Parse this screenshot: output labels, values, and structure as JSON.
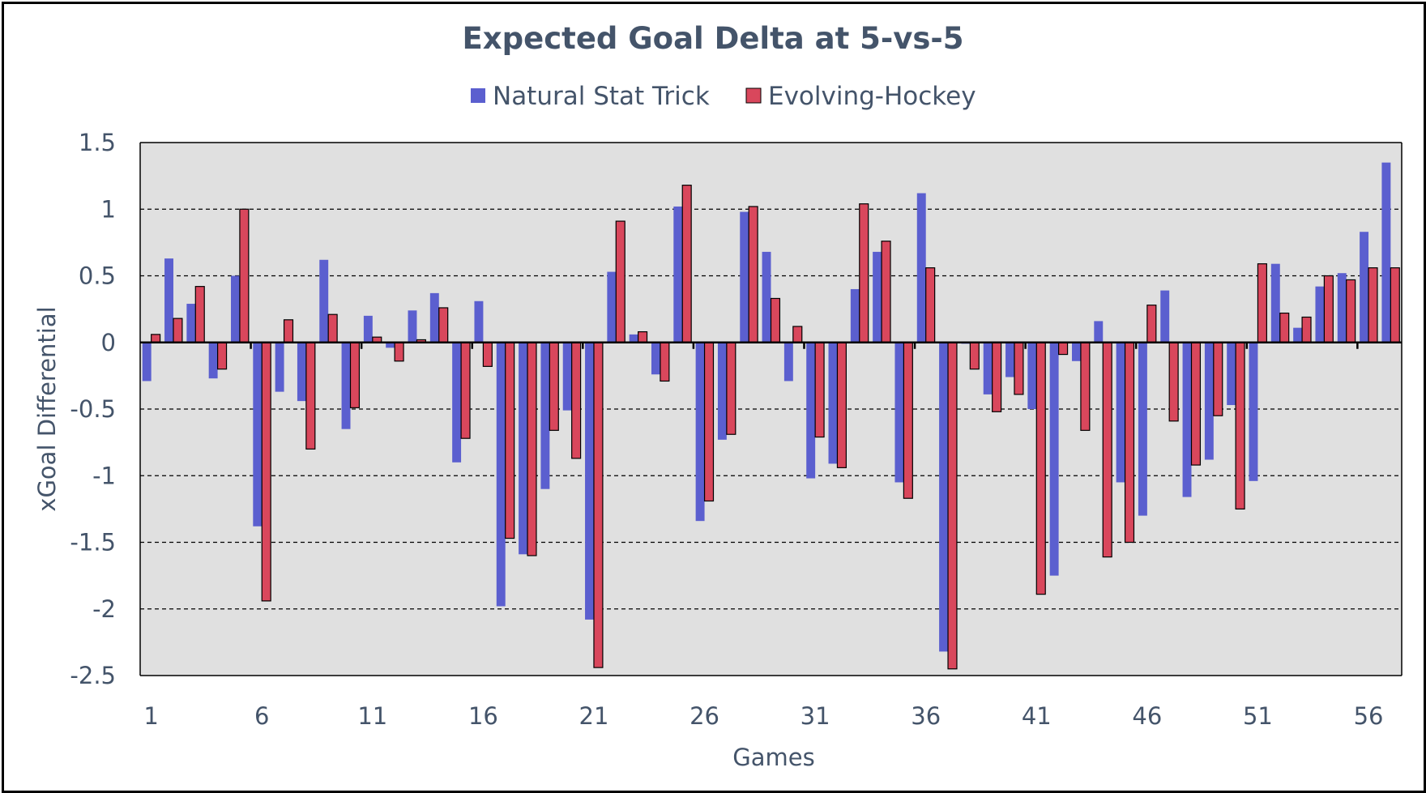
{
  "chart_data": {
    "type": "bar",
    "title": "Expected Goal Delta at 5-vs-5",
    "xlabel": "Games",
    "ylabel": "xGoal Differential",
    "ylim": [
      -2.5,
      1.5
    ],
    "yticks": [
      "1.5",
      "1",
      "0.5",
      "0",
      "-0.5",
      "-1",
      "-1.5",
      "-2",
      "-2.5"
    ],
    "ytick_values": [
      1.5,
      1,
      0.5,
      0,
      -0.5,
      -1,
      -1.5,
      -2,
      -2.5
    ],
    "xtick_labels": [
      "1",
      "6",
      "11",
      "16",
      "21",
      "26",
      "31",
      "36",
      "41",
      "46",
      "51",
      "56"
    ],
    "xtick_games": [
      1,
      6,
      11,
      16,
      21,
      26,
      31,
      36,
      41,
      46,
      51,
      56
    ],
    "n_games": 57,
    "grid": "horizontal dashed",
    "legend": "top",
    "plot_background": "#e0e0e0",
    "series": [
      {
        "name": "Natural Stat Trick",
        "color": "#5b5fcf",
        "values": [
          -0.29,
          0.63,
          0.29,
          -0.27,
          0.5,
          -1.38,
          -0.37,
          -0.44,
          0.62,
          -0.65,
          0.2,
          -0.04,
          0.24,
          0.37,
          -0.9,
          0.31,
          -1.98,
          -1.59,
          -1.1,
          -0.51,
          -2.08,
          0.53,
          0.06,
          -0.24,
          1.02,
          -1.34,
          -0.73,
          0.98,
          0.68,
          -0.29,
          -1.02,
          -0.91,
          0.4,
          0.68,
          -1.05,
          1.12,
          -2.32,
          -0.01,
          -0.39,
          -0.26,
          -0.5,
          -1.75,
          -0.14,
          0.16,
          -1.05,
          -1.3,
          0.39,
          -1.16,
          -0.88,
          -0.47,
          -1.04,
          0.59,
          0.11,
          0.42,
          0.52,
          0.83,
          1.35
        ]
      },
      {
        "name": "Evolving-Hockey",
        "color": "#d9475c",
        "values": [
          0.06,
          0.18,
          0.42,
          -0.2,
          1.0,
          -1.94,
          0.17,
          -0.8,
          0.21,
          -0.49,
          0.04,
          -0.14,
          0.02,
          0.26,
          -0.72,
          -0.18,
          -1.47,
          -1.6,
          -0.66,
          -0.87,
          -2.44,
          0.91,
          0.08,
          -0.29,
          1.18,
          -1.19,
          -0.69,
          1.02,
          0.33,
          0.12,
          -0.71,
          -0.94,
          1.04,
          0.76,
          -1.17,
          0.56,
          -2.45,
          -0.2,
          -0.52,
          -0.39,
          -1.89,
          -0.09,
          -0.66,
          -1.61,
          -1.5,
          0.28,
          -0.59,
          -0.92,
          -0.55,
          -1.25,
          0.59,
          0.22,
          0.19,
          0.5,
          0.47,
          0.56,
          0.56
        ]
      }
    ]
  }
}
